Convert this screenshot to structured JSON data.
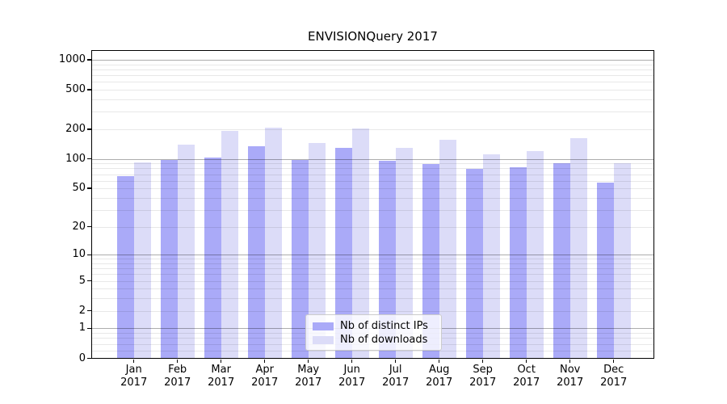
{
  "chart_data": {
    "type": "bar",
    "title": "ENVISIONQuery 2017",
    "categories": [
      "Jan",
      "Feb",
      "Mar",
      "Apr",
      "May",
      "Jun",
      "Jul",
      "Aug",
      "Sep",
      "Oct",
      "Nov",
      "Dec"
    ],
    "category_year": "2017",
    "series": [
      {
        "name": "Nb of distinct IPs",
        "color": "#aaaaf8",
        "values": [
          67,
          98,
          103,
          135,
          97,
          130,
          96,
          88,
          79,
          82,
          91,
          57
        ]
      },
      {
        "name": "Nb of downloads",
        "color": "#dcdcf8",
        "values": [
          92,
          140,
          191,
          208,
          144,
          202,
          130,
          155,
          111,
          121,
          163,
          91
        ]
      }
    ],
    "xlabel": "",
    "ylabel": "",
    "yscale": "symlog",
    "y_ticks": [
      0,
      1,
      2,
      5,
      10,
      20,
      50,
      100,
      200,
      500,
      1000
    ],
    "y_minor_ticks": [
      0.2,
      0.4,
      0.6,
      0.8,
      2,
      3,
      4,
      5,
      6,
      7,
      8,
      9,
      20,
      30,
      40,
      50,
      60,
      70,
      80,
      90,
      200,
      300,
      400,
      500,
      600,
      700,
      800,
      900
    ],
    "y_major_gridlines": [
      1,
      10,
      100,
      1000
    ],
    "ylim": [
      0,
      1250
    ],
    "grid": true,
    "legend_position": "lower center"
  }
}
